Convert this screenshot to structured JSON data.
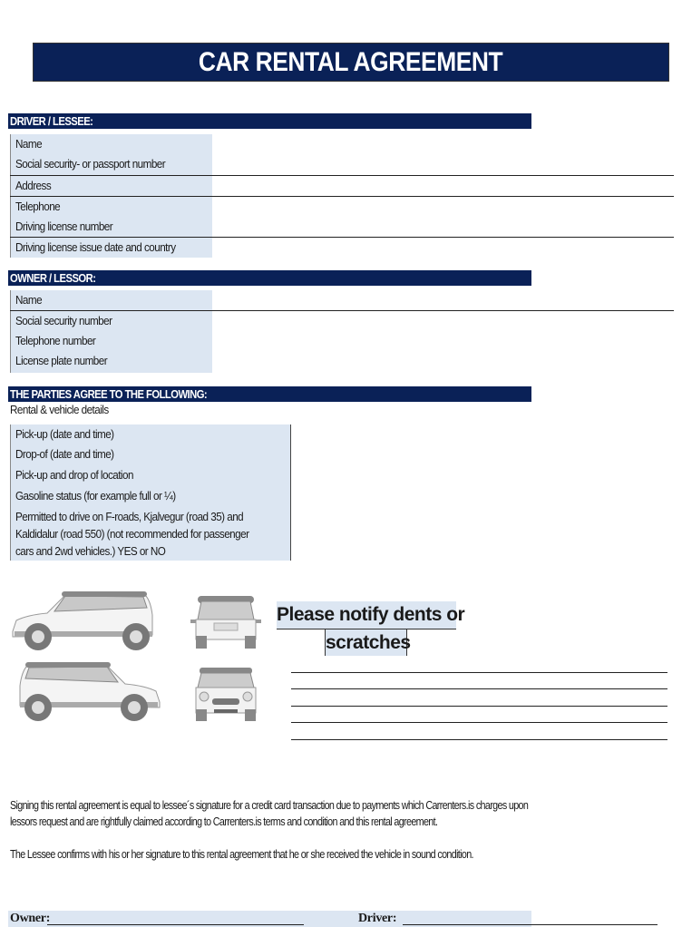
{
  "title": "CAR RENTAL AGREEMENT",
  "driver": {
    "header": "DRIVER / LESSEE:",
    "fields": [
      "Name",
      "Social security- or passport number",
      "Address",
      "Telephone",
      "Driving license number",
      "Driving license issue date and country"
    ]
  },
  "owner": {
    "header": "OWNER / LESSOR:",
    "fields": [
      "Name",
      "Social security number",
      "Telephone number",
      "License plate number"
    ]
  },
  "agreement": {
    "header": "THE PARTIES AGREE TO THE FOLLOWING:",
    "subheader": "Rental & vehicle details",
    "fields": [
      "Pick-up (date and time)",
      "Drop-of (date and time)",
      "Pick-up and drop of location",
      "Gasoline status (for example full or ¼)"
    ],
    "froads_lines": [
      "Permitted to drive on F-roads, Kjalvegur (road 35) and",
      "Kaldidalur (road 550)  (not recommended for passenger",
      "cars and 2wd vehicles.) YES or NO"
    ]
  },
  "damage": {
    "notify_line1": "Please notify dents or",
    "notify_line2": "scratches",
    "colon": ":"
  },
  "terms": {
    "p1_line1": "Signing this rental agreement is equal to lessee´s signature for a credit card transaction due to payments which Carrenters.is charges upon",
    "p1_line2": "lessors request and are rightfully claimed according to Carrenters.is terms and condition and this rental agreement.",
    "p2": "The Lessee confirms with his or her signature to this rental agreement that he or she received the vehicle in sound condition."
  },
  "signatures": {
    "owner_label": "Owner:",
    "driver_label": "Driver:"
  },
  "colors": {
    "navy": "#0a2157",
    "light_blue": "#dce6f2"
  }
}
